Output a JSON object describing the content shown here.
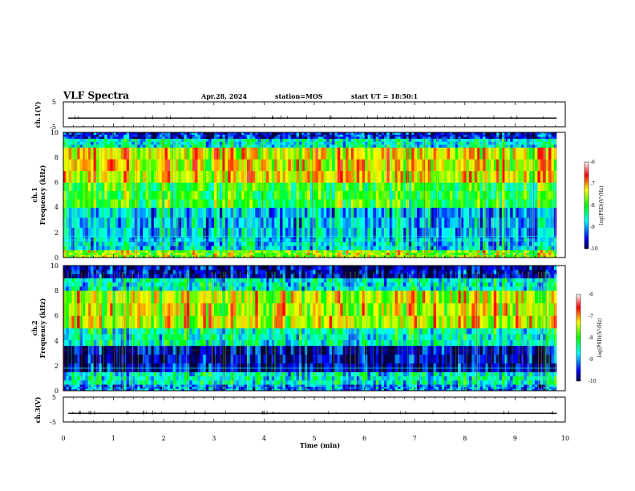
{
  "header": {
    "title": "VLF Spectra",
    "date": "Apr.28, 2024",
    "station": "station=MOS",
    "start": "start UT = 18:50:1"
  },
  "chart_data": [
    {
      "type": "line",
      "panel": "ch1-waveform",
      "ylabel": "ch.1(V)",
      "yticks": [
        "5",
        "-5"
      ],
      "ylim": [
        -5,
        5
      ],
      "xlim": [
        0,
        10
      ],
      "trace_level_V": -1.5,
      "colors": {
        "trace": "#000000"
      }
    },
    {
      "type": "heatmap",
      "panel": "ch1-spectrogram",
      "ylabel_1": "ch.1",
      "ylabel_2": "Frequency (kHz)",
      "yticks": [
        "0",
        "2",
        "4",
        "6",
        "8",
        "10"
      ],
      "ylim": [
        0,
        10
      ],
      "xlim": [
        0,
        10
      ],
      "colorbar": {
        "label": "log(PSD)(V²/Hz)",
        "ticks": [
          "-6",
          "-7",
          "-8",
          "-9",
          "-10"
        ],
        "range": [
          -10,
          -6
        ]
      },
      "bands_kHz": [
        {
          "low": 0,
          "high": 0.6,
          "level": -7.6
        },
        {
          "low": 0.6,
          "high": 1.6,
          "level": -8.8
        },
        {
          "low": 1.6,
          "high": 4.0,
          "level": -8.9
        },
        {
          "low": 4.0,
          "high": 6.0,
          "level": -8.0
        },
        {
          "low": 6.0,
          "high": 8.8,
          "level": -7.3
        },
        {
          "low": 8.8,
          "high": 9.5,
          "level": -8.6
        },
        {
          "low": 9.5,
          "high": 10.0,
          "level": -9.5
        }
      ],
      "lines_kHz": [
        1.4,
        1.7
      ]
    },
    {
      "type": "heatmap",
      "panel": "ch2-spectrogram",
      "ylabel_1": "ch.2",
      "ylabel_2": "Frequency (kHz)",
      "yticks": [
        "0",
        "2",
        "4",
        "6",
        "8",
        "10"
      ],
      "ylim": [
        0,
        10
      ],
      "xlim": [
        0,
        10
      ],
      "colorbar": {
        "label": "log(PSD)(V²/Hz)",
        "ticks": [
          "-6",
          "-7",
          "-8",
          "-9",
          "-10"
        ],
        "range": [
          -10,
          -6
        ]
      },
      "bands_kHz": [
        {
          "low": 0,
          "high": 0.5,
          "level": -9.1
        },
        {
          "low": 0.5,
          "high": 1.5,
          "level": -8.6
        },
        {
          "low": 1.5,
          "high": 3.6,
          "level": -9.7
        },
        {
          "low": 3.6,
          "high": 5.0,
          "level": -8.5
        },
        {
          "low": 5.0,
          "high": 8.0,
          "level": -7.4
        },
        {
          "low": 8.0,
          "high": 9.0,
          "level": -8.6
        },
        {
          "low": 9.0,
          "high": 10.0,
          "level": -9.7
        }
      ],
      "lines_kHz": [
        1.8
      ]
    },
    {
      "type": "line",
      "panel": "ch3-waveform",
      "ylabel": "ch.3(V)",
      "yticks": [
        "5",
        "-5"
      ],
      "ylim": [
        -5,
        5
      ],
      "xlim": [
        0,
        10
      ],
      "trace_level_V": -1.5,
      "colors": {
        "trace": "#000000"
      },
      "xlabel": "Time (min)",
      "xticks": [
        "0",
        "1",
        "2",
        "3",
        "4",
        "5",
        "6",
        "7",
        "8",
        "9",
        "10"
      ]
    }
  ]
}
